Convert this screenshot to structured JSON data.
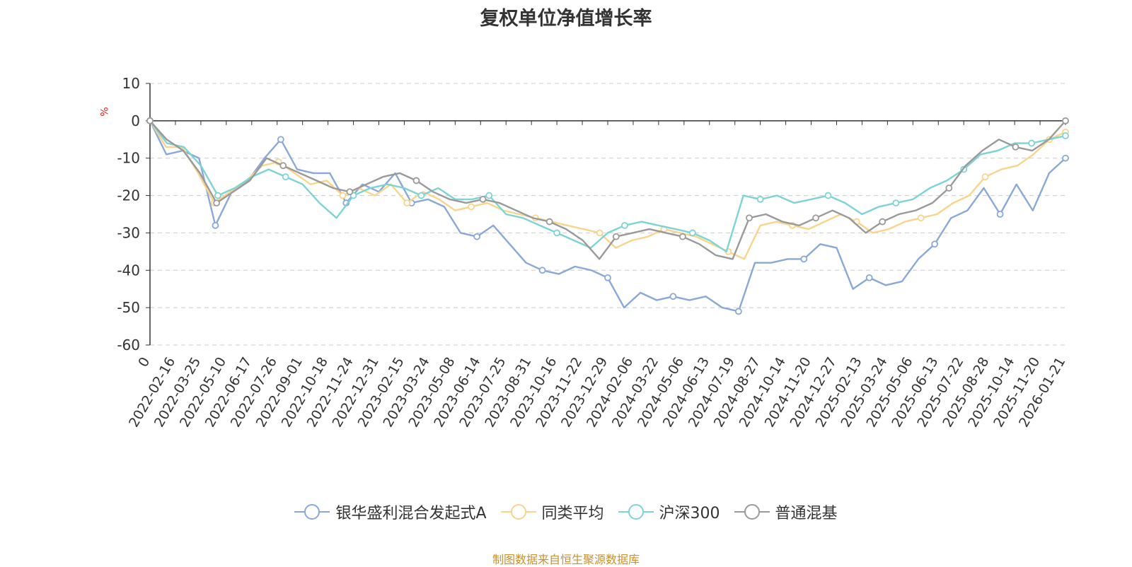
{
  "title": "复权单位净值增长率",
  "unit": "%",
  "source": "制图数据来自恒生聚源数据库",
  "chart_data": {
    "type": "line",
    "title": "复权单位净值增长率",
    "ylabel": "%",
    "ylim": [
      -60,
      10
    ],
    "yticks": [
      10,
      0,
      -10,
      -20,
      -30,
      -40,
      -50,
      -60
    ],
    "grid": true,
    "legend_position": "bottom",
    "x_tick_labels": [
      "0",
      "2022-02-16",
      "2022-03-25",
      "2022-05-10",
      "2022-06-17",
      "2022-07-26",
      "2022-09-01",
      "2022-10-18",
      "2022-11-24",
      "2022-12-31",
      "2023-02-15",
      "2023-03-24",
      "2023-05-08",
      "2023-06-14",
      "2023-07-25",
      "2023-08-31",
      "2023-10-16",
      "2023-11-22",
      "2023-12-29",
      "2024-02-06",
      "2024-03-22",
      "2024-05-06",
      "2024-06-13",
      "2024-07-19",
      "2024-08-27",
      "2024-10-14",
      "2024-11-20",
      "2024-12-27",
      "2025-02-13",
      "2025-03-24",
      "2025-05-06",
      "2025-06-13",
      "2025-07-22",
      "2025-08-28",
      "2025-10-14",
      "2025-11-20",
      "2026-01-21"
    ],
    "series": [
      {
        "name": "银华盛利混合发起式A",
        "color": "#8aa8d8",
        "values": [
          0,
          -9,
          -8,
          -10,
          -28,
          -19,
          -16,
          -10,
          -5,
          -13,
          -14,
          -14,
          -22,
          -17,
          -19,
          -14,
          -22,
          -21,
          -23,
          -30,
          -31,
          -28,
          -33,
          -38,
          -40,
          -41,
          -39,
          -40,
          -42,
          -50,
          -46,
          -48,
          -47,
          -48,
          -47,
          -50,
          -51,
          -38,
          -38,
          -37,
          -37,
          -33,
          -34,
          -45,
          -42,
          -44,
          -43,
          -37,
          -33,
          -26,
          -24,
          -18,
          -25,
          -17,
          -24,
          -14,
          -10
        ]
      },
      {
        "name": "同类平均",
        "color": "#f9d48c",
        "values": [
          0,
          -7,
          -7,
          -14,
          -22,
          -19,
          -16,
          -12,
          -11,
          -14,
          -17,
          -16,
          -20,
          -18,
          -20,
          -17,
          -22,
          -19,
          -21,
          -24,
          -23,
          -22,
          -24,
          -25,
          -26,
          -27,
          -28,
          -29,
          -30,
          -34,
          -32,
          -31,
          -29,
          -30,
          -31,
          -33,
          -35,
          -37,
          -28,
          -27,
          -28,
          -29,
          -27,
          -25,
          -27,
          -30,
          -29,
          -27,
          -26,
          -25,
          -22,
          -20,
          -15,
          -13,
          -12,
          -9,
          -5,
          -3
        ]
      },
      {
        "name": "沪深300",
        "color": "#7ed3d4",
        "values": [
          0,
          -6,
          -7,
          -12,
          -20,
          -18,
          -15,
          -13,
          -15,
          -17,
          -22,
          -26,
          -20,
          -18,
          -17,
          -18,
          -20,
          -18,
          -21,
          -21,
          -20,
          -25,
          -26,
          -28,
          -30,
          -32,
          -34,
          -30,
          -28,
          -27,
          -28,
          -29,
          -30,
          -32,
          -35,
          -20,
          -21,
          -20,
          -22,
          -21,
          -20,
          -22,
          -25,
          -23,
          -22,
          -21,
          -18,
          -16,
          -13,
          -9,
          -8,
          -6,
          -6,
          -5,
          -4
        ]
      },
      {
        "name": "普通混基",
        "color": "#9a9a9a",
        "values": [
          0,
          -5,
          -8,
          -14,
          -22,
          -19,
          -16,
          -10,
          -12,
          -14,
          -16,
          -18,
          -19,
          -17,
          -15,
          -14,
          -16,
          -19,
          -21,
          -22,
          -21,
          -22,
          -24,
          -26,
          -27,
          -29,
          -32,
          -37,
          -31,
          -30,
          -29,
          -30,
          -31,
          -33,
          -36,
          -37,
          -26,
          -25,
          -27,
          -28,
          -26,
          -24,
          -26,
          -30,
          -27,
          -25,
          -24,
          -22,
          -18,
          -12,
          -8,
          -5,
          -7,
          -8,
          -5,
          0
        ]
      }
    ]
  }
}
